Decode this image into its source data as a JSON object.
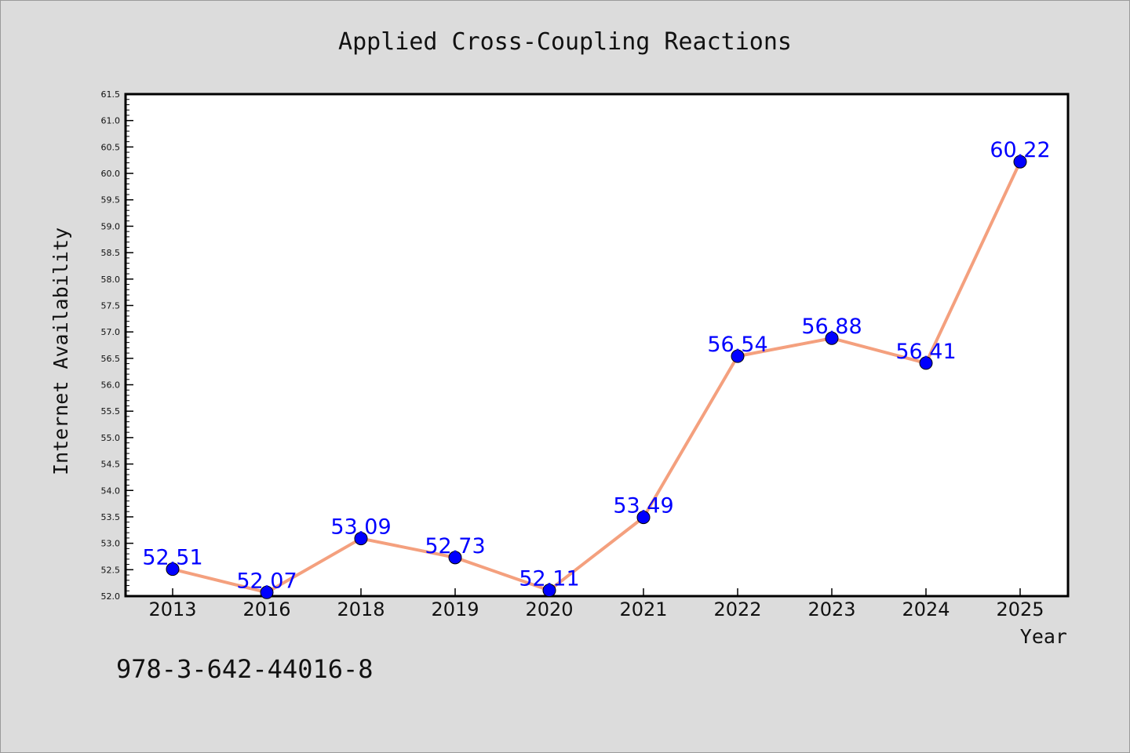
{
  "chart_data": {
    "type": "line",
    "title": "Applied Cross-Coupling Reactions",
    "xlabel": "Year",
    "ylabel": "Internet Availability",
    "categories": [
      "2013",
      "2016",
      "2018",
      "2019",
      "2020",
      "2021",
      "2022",
      "2023",
      "2024",
      "2025"
    ],
    "series": [
      {
        "values": [
          52.51,
          52.07,
          53.09,
          52.73,
          52.11,
          53.49,
          56.54,
          56.88,
          56.41,
          60.22
        ],
        "data_labels": [
          "52.51",
          "52.07",
          "53.09",
          "52.73",
          "52.11",
          "53.49",
          "56.54",
          "56.88",
          "56.41",
          "60.22"
        ],
        "line_color": "#f4a07e",
        "marker_color": "#0000ff"
      }
    ],
    "ylim": [
      52.0,
      61.5
    ],
    "yticks": [
      "52.0",
      "52.5",
      "53.0",
      "53.5",
      "54.0",
      "54.5",
      "55.0",
      "55.5",
      "56.0",
      "56.5",
      "57.0",
      "57.5",
      "58.0",
      "58.5",
      "59.0",
      "59.5",
      "60.0",
      "60.5",
      "61.0",
      "61.5"
    ],
    "grid": false,
    "footer": "978-3-642-44016-8"
  }
}
